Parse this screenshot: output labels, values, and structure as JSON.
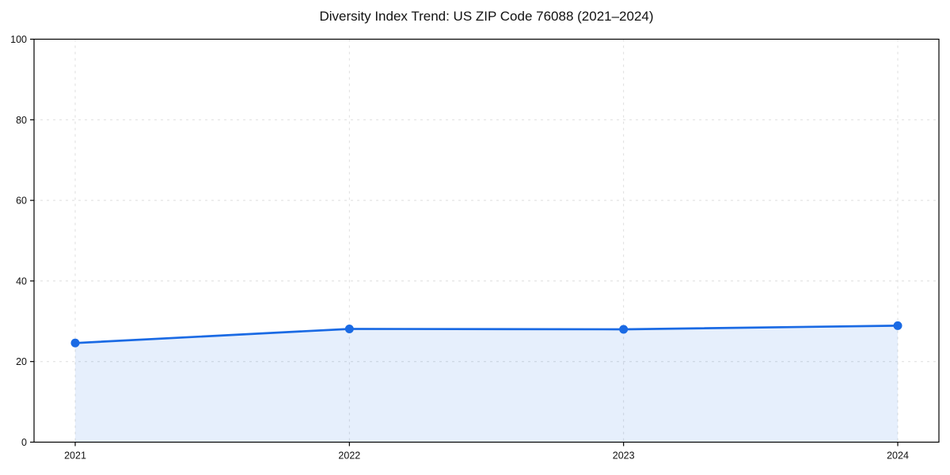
{
  "chart_data": {
    "type": "line",
    "title": "Diversity Index Trend: US ZIP Code 76088 (2021–2024)",
    "x": [
      "2021",
      "2022",
      "2023",
      "2024"
    ],
    "series": [
      {
        "name": "Diversity Index",
        "values": [
          24.6,
          28.1,
          28.0,
          28.9
        ]
      }
    ],
    "xlabel": "",
    "ylabel": "",
    "ylim": [
      0,
      100
    ],
    "y_ticks": [
      0,
      20,
      40,
      60,
      80,
      100
    ],
    "grid": "dashed, horizontal at each y tick and vertical at each year",
    "legend_position": "none",
    "area_fill_below_line": true,
    "marker_style": "filled circle",
    "colors": {
      "line": "#1a6ae4",
      "marker": "#1a6ae4",
      "area_fill": "rgba(26,106,228,0.11)",
      "grid": "#dddddd",
      "axis_box": "#000000",
      "text": "#111111",
      "background": "#ffffff"
    }
  }
}
